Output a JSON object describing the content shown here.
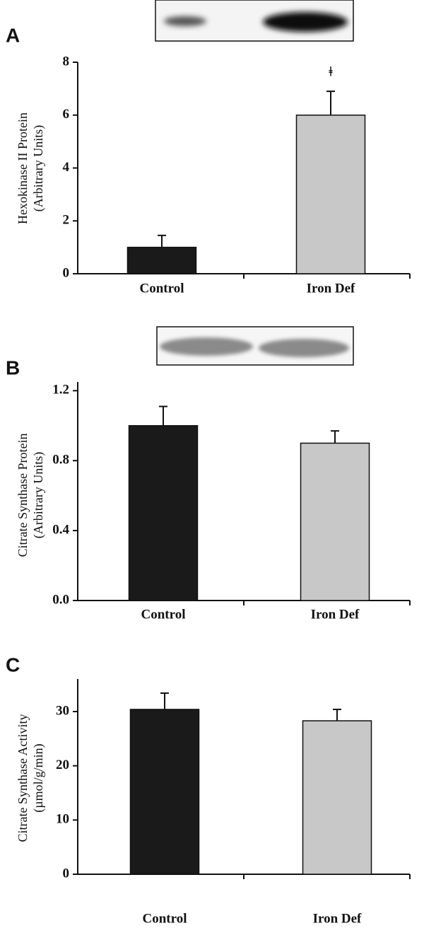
{
  "chart_data": [
    {
      "type": "bar",
      "panel": "A",
      "ylabel": [
        "Hexokinase II Protein",
        "(Arbitrary Units)"
      ],
      "categories": [
        "Control",
        "Iron Def"
      ],
      "values": [
        1.0,
        6.0
      ],
      "errors": [
        0.45,
        0.9
      ],
      "annotation_labels": [
        null,
        "ǂ"
      ],
      "colors": [
        "#1a1a1a",
        "#c8c8c8"
      ],
      "ylim": [
        0,
        8
      ],
      "yticks": [
        0,
        2,
        4,
        6,
        8
      ]
    },
    {
      "type": "bar",
      "panel": "B",
      "ylabel": [
        "Citrate Synthase Protein",
        "(Arbitrary Units)"
      ],
      "categories": [
        "Control",
        "Iron Def"
      ],
      "values": [
        1.0,
        0.9
      ],
      "errors": [
        0.11,
        0.07
      ],
      "colors": [
        "#1a1a1a",
        "#c8c8c8"
      ],
      "ylim": [
        0,
        1.25
      ],
      "yticks": [
        {
          "value": 0,
          "label": "0.0"
        },
        0.4,
        0.8,
        1.2
      ]
    },
    {
      "type": "bar",
      "panel": "C",
      "ylabel": [
        "Citrate Synthase Activity",
        "(µmol/g/min)"
      ],
      "categories": [
        "Control",
        "Iron Def"
      ],
      "values": [
        30.4,
        28.3
      ],
      "errors": [
        3.0,
        2.1
      ],
      "colors": [
        "#1a1a1a",
        "#c8c8c8"
      ],
      "ylim": [
        0,
        36
      ],
      "yticks": [
        0,
        10,
        20,
        30
      ]
    }
  ]
}
